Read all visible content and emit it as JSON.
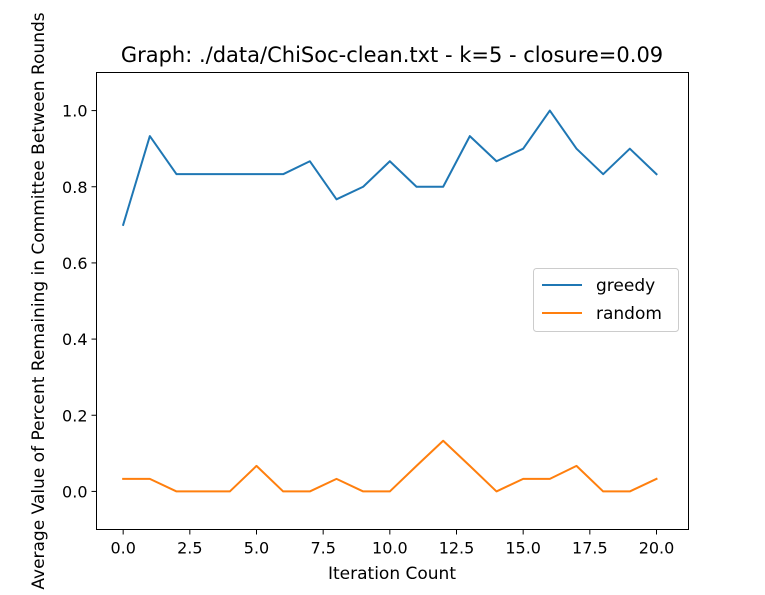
{
  "chart_data": {
    "type": "line",
    "title": "Graph: ./data/ChiSoc-clean.txt - k=5 - closure=0.09",
    "xlabel": "Iteration Count",
    "ylabel": "Average Value of Percent Remaining in Committee Between Rounds",
    "xlim": [
      -1,
      21.2
    ],
    "ylim": [
      -0.1,
      1.1
    ],
    "xticks": [
      0.0,
      2.5,
      5.0,
      7.5,
      10.0,
      12.5,
      15.0,
      17.5,
      20.0
    ],
    "xtick_labels": [
      "0.0",
      "2.5",
      "5.0",
      "7.5",
      "10.0",
      "12.5",
      "15.0",
      "17.5",
      "20.0"
    ],
    "yticks": [
      0.0,
      0.2,
      0.4,
      0.6,
      0.8,
      1.0
    ],
    "ytick_labels": [
      "0.0",
      "0.2",
      "0.4",
      "0.6",
      "0.8",
      "1.0"
    ],
    "grid": false,
    "legend_position": "center-right",
    "x": [
      0,
      1,
      2,
      3,
      4,
      5,
      6,
      7,
      8,
      9,
      10,
      11,
      12,
      13,
      14,
      15,
      16,
      17,
      18,
      19,
      20
    ],
    "series": [
      {
        "name": "greedy",
        "color": "#1f77b4",
        "values": [
          0.7,
          0.933,
          0.833,
          0.833,
          0.833,
          0.833,
          0.833,
          0.867,
          0.767,
          0.8,
          0.867,
          0.8,
          0.8,
          0.933,
          0.867,
          0.9,
          1.0,
          0.9,
          0.833,
          0.9,
          0.833
        ]
      },
      {
        "name": "random",
        "color": "#ff7f0e",
        "values": [
          0.033,
          0.033,
          0.0,
          0.0,
          0.0,
          0.067,
          0.0,
          0.0,
          0.033,
          0.0,
          0.0,
          0.067,
          0.133,
          0.067,
          0.0,
          0.033,
          0.033,
          0.067,
          0.0,
          0.0,
          0.033
        ]
      }
    ]
  }
}
